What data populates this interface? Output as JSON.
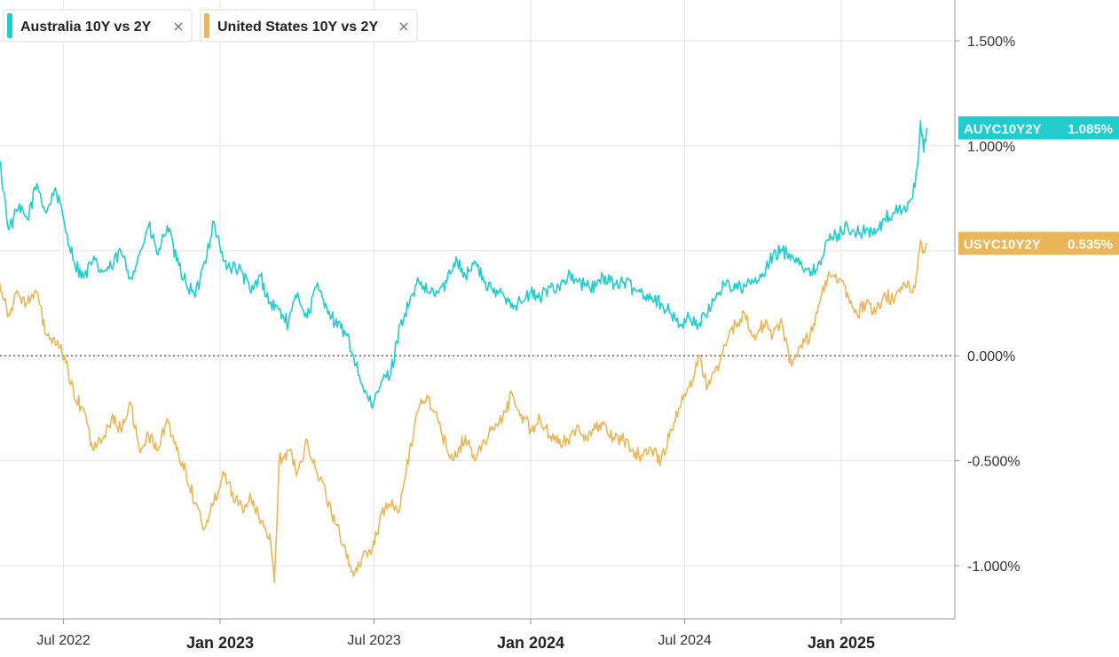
{
  "chart_data": {
    "type": "line",
    "title": "",
    "xlabel": "",
    "ylabel": "",
    "x_range": [
      "2022-04",
      "2025-05"
    ],
    "ylim": [
      -1.25,
      1.65
    ],
    "y_ticks": [
      {
        "value": 1.5,
        "label": "1.500%"
      },
      {
        "value": 1.0,
        "label": "1.000%"
      },
      {
        "value": 0.0,
        "label": "0.000%"
      },
      {
        "value": -0.5,
        "label": "-0.500%"
      },
      {
        "value": -1.0,
        "label": "-1.000%"
      }
    ],
    "y_gridlines": [
      1.5,
      1.0,
      0.5,
      -0.5,
      -1.0
    ],
    "zero_line": 0.0,
    "x_ticks": [
      {
        "t": 2022.4959,
        "label": "Jul 2022",
        "emphasis": false
      },
      {
        "t": 2023.0,
        "label": "Jan 2023",
        "emphasis": true
      },
      {
        "t": 2023.4959,
        "label": "Jul 2023",
        "emphasis": false
      },
      {
        "t": 2024.0,
        "label": "Jan 2024",
        "emphasis": true
      },
      {
        "t": 2024.4959,
        "label": "Jul 2024",
        "emphasis": false
      },
      {
        "t": 2025.0,
        "label": "Jan 2025",
        "emphasis": true
      }
    ],
    "legend_position": "top-left",
    "series": [
      {
        "name": "Australia 10Y vs 2Y",
        "ticker": "AUYC10Y2Y",
        "last_label": "1.085%",
        "last_value": 1.085,
        "color": "#22cbcd",
        "points": [
          [
            2022.29,
            0.93
          ],
          [
            2022.32,
            0.6
          ],
          [
            2022.35,
            0.7
          ],
          [
            2022.38,
            0.65
          ],
          [
            2022.41,
            0.82
          ],
          [
            2022.44,
            0.68
          ],
          [
            2022.47,
            0.8
          ],
          [
            2022.5,
            0.62
          ],
          [
            2022.53,
            0.45
          ],
          [
            2022.56,
            0.37
          ],
          [
            2022.59,
            0.45
          ],
          [
            2022.62,
            0.4
          ],
          [
            2022.65,
            0.42
          ],
          [
            2022.68,
            0.5
          ],
          [
            2022.71,
            0.37
          ],
          [
            2022.74,
            0.48
          ],
          [
            2022.77,
            0.62
          ],
          [
            2022.8,
            0.48
          ],
          [
            2022.83,
            0.62
          ],
          [
            2022.86,
            0.45
          ],
          [
            2022.89,
            0.35
          ],
          [
            2022.92,
            0.28
          ],
          [
            2022.95,
            0.45
          ],
          [
            2022.98,
            0.64
          ],
          [
            2023.01,
            0.45
          ],
          [
            2023.04,
            0.42
          ],
          [
            2023.07,
            0.4
          ],
          [
            2023.1,
            0.3
          ],
          [
            2023.13,
            0.38
          ],
          [
            2023.16,
            0.25
          ],
          [
            2023.19,
            0.22
          ],
          [
            2023.22,
            0.15
          ],
          [
            2023.25,
            0.3
          ],
          [
            2023.28,
            0.18
          ],
          [
            2023.31,
            0.33
          ],
          [
            2023.34,
            0.25
          ],
          [
            2023.37,
            0.15
          ],
          [
            2023.4,
            0.12
          ],
          [
            2023.43,
            0.0
          ],
          [
            2023.46,
            -0.15
          ],
          [
            2023.49,
            -0.25
          ],
          [
            2023.52,
            -0.12
          ],
          [
            2023.55,
            -0.08
          ],
          [
            2023.58,
            0.15
          ],
          [
            2023.61,
            0.25
          ],
          [
            2023.64,
            0.35
          ],
          [
            2023.67,
            0.3
          ],
          [
            2023.7,
            0.3
          ],
          [
            2023.73,
            0.35
          ],
          [
            2023.76,
            0.47
          ],
          [
            2023.79,
            0.38
          ],
          [
            2023.82,
            0.45
          ],
          [
            2023.85,
            0.35
          ],
          [
            2023.88,
            0.3
          ],
          [
            2023.91,
            0.3
          ],
          [
            2023.94,
            0.25
          ],
          [
            2023.97,
            0.25
          ],
          [
            2024.0,
            0.3
          ],
          [
            2024.03,
            0.27
          ],
          [
            2024.06,
            0.33
          ],
          [
            2024.09,
            0.33
          ],
          [
            2024.12,
            0.38
          ],
          [
            2024.15,
            0.35
          ],
          [
            2024.18,
            0.33
          ],
          [
            2024.21,
            0.33
          ],
          [
            2024.24,
            0.38
          ],
          [
            2024.27,
            0.34
          ],
          [
            2024.3,
            0.35
          ],
          [
            2024.33,
            0.32
          ],
          [
            2024.36,
            0.3
          ],
          [
            2024.39,
            0.28
          ],
          [
            2024.42,
            0.25
          ],
          [
            2024.45,
            0.2
          ],
          [
            2024.48,
            0.15
          ],
          [
            2024.51,
            0.18
          ],
          [
            2024.54,
            0.15
          ],
          [
            2024.57,
            0.2
          ],
          [
            2024.6,
            0.3
          ],
          [
            2024.63,
            0.35
          ],
          [
            2024.66,
            0.32
          ],
          [
            2024.69,
            0.33
          ],
          [
            2024.72,
            0.35
          ],
          [
            2024.75,
            0.38
          ],
          [
            2024.78,
            0.48
          ],
          [
            2024.81,
            0.5
          ],
          [
            2024.84,
            0.48
          ],
          [
            2024.87,
            0.45
          ],
          [
            2024.9,
            0.38
          ],
          [
            2024.93,
            0.45
          ],
          [
            2024.96,
            0.55
          ],
          [
            2024.99,
            0.58
          ],
          [
            2025.02,
            0.62
          ],
          [
            2025.05,
            0.58
          ],
          [
            2025.08,
            0.6
          ],
          [
            2025.11,
            0.58
          ],
          [
            2025.14,
            0.65
          ],
          [
            2025.17,
            0.68
          ],
          [
            2025.2,
            0.7
          ],
          [
            2025.23,
            0.75
          ],
          [
            2025.245,
            0.9
          ],
          [
            2025.255,
            1.12
          ],
          [
            2025.265,
            0.97
          ],
          [
            2025.275,
            1.085
          ]
        ]
      },
      {
        "name": "United States 10Y vs 2Y",
        "ticker": "USYC10Y2Y",
        "last_label": "0.535%",
        "last_value": 0.535,
        "color": "#e9b75a",
        "points": [
          [
            2022.29,
            0.35
          ],
          [
            2022.32,
            0.2
          ],
          [
            2022.35,
            0.3
          ],
          [
            2022.38,
            0.25
          ],
          [
            2022.41,
            0.3
          ],
          [
            2022.44,
            0.1
          ],
          [
            2022.47,
            0.05
          ],
          [
            2022.5,
            0.0
          ],
          [
            2022.53,
            -0.2
          ],
          [
            2022.56,
            -0.25
          ],
          [
            2022.59,
            -0.45
          ],
          [
            2022.62,
            -0.4
          ],
          [
            2022.65,
            -0.3
          ],
          [
            2022.68,
            -0.35
          ],
          [
            2022.71,
            -0.22
          ],
          [
            2022.74,
            -0.45
          ],
          [
            2022.77,
            -0.38
          ],
          [
            2022.8,
            -0.45
          ],
          [
            2022.83,
            -0.3
          ],
          [
            2022.86,
            -0.45
          ],
          [
            2022.89,
            -0.55
          ],
          [
            2022.92,
            -0.7
          ],
          [
            2022.95,
            -0.82
          ],
          [
            2022.98,
            -0.7
          ],
          [
            2023.01,
            -0.55
          ],
          [
            2023.04,
            -0.65
          ],
          [
            2023.07,
            -0.72
          ],
          [
            2023.1,
            -0.68
          ],
          [
            2023.13,
            -0.8
          ],
          [
            2023.16,
            -0.85
          ],
          [
            2023.175,
            -1.08
          ],
          [
            2023.19,
            -0.5
          ],
          [
            2023.22,
            -0.45
          ],
          [
            2023.25,
            -0.55
          ],
          [
            2023.28,
            -0.4
          ],
          [
            2023.31,
            -0.55
          ],
          [
            2023.34,
            -0.65
          ],
          [
            2023.37,
            -0.8
          ],
          [
            2023.4,
            -0.9
          ],
          [
            2023.43,
            -1.05
          ],
          [
            2023.46,
            -0.95
          ],
          [
            2023.49,
            -0.92
          ],
          [
            2023.52,
            -0.75
          ],
          [
            2023.55,
            -0.72
          ],
          [
            2023.58,
            -0.72
          ],
          [
            2023.61,
            -0.45
          ],
          [
            2023.64,
            -0.25
          ],
          [
            2023.67,
            -0.2
          ],
          [
            2023.7,
            -0.3
          ],
          [
            2023.73,
            -0.45
          ],
          [
            2023.76,
            -0.48
          ],
          [
            2023.79,
            -0.38
          ],
          [
            2023.82,
            -0.5
          ],
          [
            2023.85,
            -0.4
          ],
          [
            2023.88,
            -0.35
          ],
          [
            2023.91,
            -0.3
          ],
          [
            2023.94,
            -0.18
          ],
          [
            2023.97,
            -0.28
          ],
          [
            2024.0,
            -0.35
          ],
          [
            2024.03,
            -0.3
          ],
          [
            2024.06,
            -0.38
          ],
          [
            2024.09,
            -0.42
          ],
          [
            2024.12,
            -0.4
          ],
          [
            2024.15,
            -0.33
          ],
          [
            2024.18,
            -0.4
          ],
          [
            2024.21,
            -0.35
          ],
          [
            2024.24,
            -0.33
          ],
          [
            2024.27,
            -0.4
          ],
          [
            2024.3,
            -0.4
          ],
          [
            2024.33,
            -0.45
          ],
          [
            2024.36,
            -0.48
          ],
          [
            2024.39,
            -0.45
          ],
          [
            2024.42,
            -0.5
          ],
          [
            2024.45,
            -0.35
          ],
          [
            2024.48,
            -0.25
          ],
          [
            2024.51,
            -0.15
          ],
          [
            2024.54,
            0.0
          ],
          [
            2024.57,
            -0.15
          ],
          [
            2024.6,
            -0.05
          ],
          [
            2024.63,
            0.05
          ],
          [
            2024.66,
            0.15
          ],
          [
            2024.69,
            0.2
          ],
          [
            2024.72,
            0.1
          ],
          [
            2024.75,
            0.15
          ],
          [
            2024.78,
            0.1
          ],
          [
            2024.81,
            0.15
          ],
          [
            2024.84,
            -0.05
          ],
          [
            2024.87,
            0.05
          ],
          [
            2024.9,
            0.1
          ],
          [
            2024.93,
            0.25
          ],
          [
            2024.96,
            0.4
          ],
          [
            2024.99,
            0.35
          ],
          [
            2025.02,
            0.3
          ],
          [
            2025.05,
            0.2
          ],
          [
            2025.08,
            0.25
          ],
          [
            2025.11,
            0.2
          ],
          [
            2025.14,
            0.3
          ],
          [
            2025.17,
            0.25
          ],
          [
            2025.2,
            0.35
          ],
          [
            2025.23,
            0.3
          ],
          [
            2025.245,
            0.4
          ],
          [
            2025.255,
            0.55
          ],
          [
            2025.265,
            0.5
          ],
          [
            2025.275,
            0.535
          ]
        ]
      }
    ]
  }
}
